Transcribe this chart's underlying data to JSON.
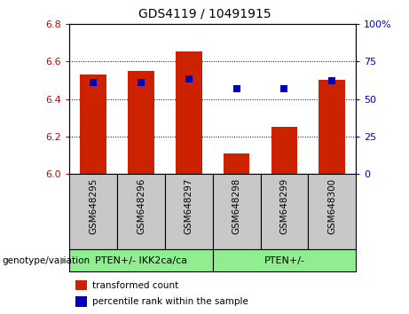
{
  "title": "GDS4119 / 10491915",
  "categories": [
    "GSM648295",
    "GSM648296",
    "GSM648297",
    "GSM648298",
    "GSM648299",
    "GSM648300"
  ],
  "bar_values": [
    6.53,
    6.55,
    6.65,
    6.11,
    6.25,
    6.5
  ],
  "bar_bottom": 6.0,
  "perc_ranks": [
    61,
    61,
    63,
    57,
    57,
    62
  ],
  "ylim_left": [
    6.0,
    6.8
  ],
  "ylim_right": [
    0,
    100
  ],
  "yticks_left": [
    6.0,
    6.2,
    6.4,
    6.6,
    6.8
  ],
  "yticks_right": [
    0,
    25,
    50,
    75,
    100
  ],
  "bar_color": "#CC2200",
  "dot_color": "#0000BB",
  "bar_width": 0.55,
  "dot_size": 35,
  "group1_label": "PTEN+/- IKK2ca/ca",
  "group2_label": "PTEN+/-",
  "genotype_label": "genotype/variation",
  "legend_bar_label": "transformed count",
  "legend_dot_label": "percentile rank within the sample",
  "tick_color_left": "#CC0000",
  "tick_color_right": "#0000CC",
  "xticklabel_bg": "#C8C8C8",
  "group_bg": "#90EE90",
  "title_fontsize": 10,
  "tick_fontsize": 8,
  "label_fontsize": 7.5,
  "legend_fontsize": 7.5,
  "group_fontsize": 8,
  "genotype_fontsize": 7.5
}
